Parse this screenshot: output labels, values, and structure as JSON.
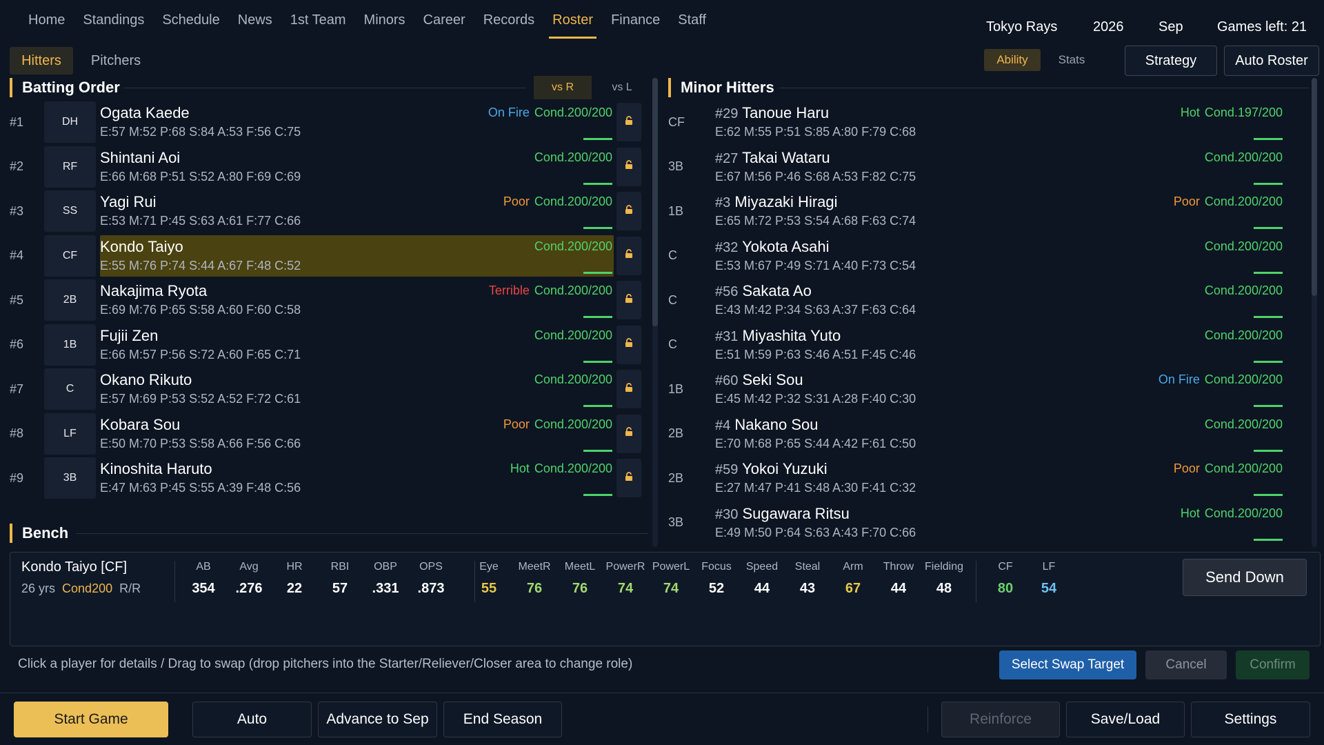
{
  "nav": [
    "Home",
    "Standings",
    "Schedule",
    "News",
    "1st Team",
    "Minors",
    "Career",
    "Records",
    "Roster",
    "Finance",
    "Staff"
  ],
  "nav_active": "Roster",
  "header": {
    "team": "Tokyo Rays",
    "year": "2026",
    "month": "Sep",
    "games_left": "Games left: 21"
  },
  "subtabs": {
    "hitters": "Hitters",
    "pitchers": "Pitchers",
    "ability": "Ability",
    "stats": "Stats",
    "strategy": "Strategy",
    "auto_roster": "Auto Roster"
  },
  "batting_order": {
    "title": "Batting Order",
    "vs_r": "vs R",
    "vs_l": "vs L",
    "rows": [
      {
        "num": "#1",
        "pos": "DH",
        "name": "Ogata Kaede",
        "stats": "E:57 M:52 P:68 S:84 A:53 F:56 C:75",
        "mood": "On Fire",
        "mood_class": "fire",
        "cond": "Cond.200/200",
        "selected": false
      },
      {
        "num": "#2",
        "pos": "RF",
        "name": "Shintani Aoi",
        "stats": "E:66 M:68 P:51 S:52 A:80 F:69 C:69",
        "mood": "",
        "mood_class": "",
        "cond": "Cond.200/200",
        "selected": false
      },
      {
        "num": "#3",
        "pos": "SS",
        "name": "Yagi Rui",
        "stats": "E:53 M:71 P:45 S:63 A:61 F:77 C:66",
        "mood": "Poor",
        "mood_class": "poor",
        "cond": "Cond.200/200",
        "selected": false
      },
      {
        "num": "#4",
        "pos": "CF",
        "name": "Kondo Taiyo",
        "stats": "E:55 M:76 P:74 S:44 A:67 F:48 C:52",
        "mood": "",
        "mood_class": "",
        "cond": "Cond.200/200",
        "selected": true
      },
      {
        "num": "#5",
        "pos": "2B",
        "name": "Nakajima Ryota",
        "stats": "E:69 M:76 P:65 S:58 A:60 F:60 C:58",
        "mood": "Terrible",
        "mood_class": "terrible",
        "cond": "Cond.200/200",
        "selected": false
      },
      {
        "num": "#6",
        "pos": "1B",
        "name": "Fujii Zen",
        "stats": "E:66 M:57 P:56 S:72 A:60 F:65 C:71",
        "mood": "",
        "mood_class": "",
        "cond": "Cond.200/200",
        "selected": false
      },
      {
        "num": "#7",
        "pos": "C",
        "name": "Okano Rikuto",
        "stats": "E:57 M:69 P:53 S:52 A:52 F:72 C:61",
        "mood": "",
        "mood_class": "",
        "cond": "Cond.200/200",
        "selected": false
      },
      {
        "num": "#8",
        "pos": "LF",
        "name": "Kobara Sou",
        "stats": "E:50 M:70 P:53 S:58 A:66 F:56 C:66",
        "mood": "Poor",
        "mood_class": "poor",
        "cond": "Cond.200/200",
        "selected": false
      },
      {
        "num": "#9",
        "pos": "3B",
        "name": "Kinoshita Haruto",
        "stats": "E:47 M:63 P:45 S:55 A:39 F:48 C:56",
        "mood": "Hot",
        "mood_class": "hot",
        "cond": "Cond.200/200",
        "selected": false
      }
    ]
  },
  "bench": {
    "title": "Bench"
  },
  "minor_hitters": {
    "title": "Minor Hitters",
    "rows": [
      {
        "pos": "CF",
        "jersey": "#29",
        "name": "Tanoue Haru",
        "stats": "E:62 M:55 P:51 S:85 A:80 F:79 C:68",
        "mood": "Hot",
        "mood_class": "hot",
        "cond": "Cond.197/200"
      },
      {
        "pos": "3B",
        "jersey": "#27",
        "name": "Takai Wataru",
        "stats": "E:67 M:56 P:46 S:68 A:53 F:82 C:75",
        "mood": "",
        "mood_class": "",
        "cond": "Cond.200/200"
      },
      {
        "pos": "1B",
        "jersey": "#3",
        "name": "Miyazaki Hiragi",
        "stats": "E:65 M:72 P:53 S:54 A:68 F:63 C:74",
        "mood": "Poor",
        "mood_class": "poor",
        "cond": "Cond.200/200"
      },
      {
        "pos": "C",
        "jersey": "#32",
        "name": "Yokota Asahi",
        "stats": "E:53 M:67 P:49 S:71 A:40 F:73 C:54",
        "mood": "",
        "mood_class": "",
        "cond": "Cond.200/200"
      },
      {
        "pos": "C",
        "jersey": "#56",
        "name": "Sakata Ao",
        "stats": "E:43 M:42 P:34 S:63 A:37 F:63 C:64",
        "mood": "",
        "mood_class": "",
        "cond": "Cond.200/200"
      },
      {
        "pos": "C",
        "jersey": "#31",
        "name": "Miyashita Yuto",
        "stats": "E:51 M:59 P:63 S:46 A:51 F:45 C:46",
        "mood": "",
        "mood_class": "",
        "cond": "Cond.200/200"
      },
      {
        "pos": "1B",
        "jersey": "#60",
        "name": "Seki Sou",
        "stats": "E:45 M:42 P:32 S:31 A:28 F:40 C:30",
        "mood": "On Fire",
        "mood_class": "fire",
        "cond": "Cond.200/200"
      },
      {
        "pos": "2B",
        "jersey": "#4",
        "name": "Nakano Sou",
        "stats": "E:70 M:68 P:65 S:44 A:42 F:61 C:50",
        "mood": "",
        "mood_class": "",
        "cond": "Cond.200/200"
      },
      {
        "pos": "2B",
        "jersey": "#59",
        "name": "Yokoi Yuzuki",
        "stats": "E:27 M:47 P:41 S:48 A:30 F:41 C:32",
        "mood": "Poor",
        "mood_class": "poor",
        "cond": "Cond.200/200"
      },
      {
        "pos": "3B",
        "jersey": "#30",
        "name": "Sugawara Ritsu",
        "stats": "E:49 M:50 P:64 S:63 A:43 F:70 C:66",
        "mood": "Hot",
        "mood_class": "hot",
        "cond": "Cond.200/200"
      }
    ]
  },
  "detail": {
    "name": "Kondo Taiyo [CF]",
    "age": "26 yrs",
    "cond": "Cond200",
    "hand": "R/R",
    "batting": [
      {
        "label": "AB",
        "value": "354"
      },
      {
        "label": "Avg",
        "value": ".276"
      },
      {
        "label": "HR",
        "value": "22"
      },
      {
        "label": "RBI",
        "value": "57"
      },
      {
        "label": "OBP",
        "value": ".331"
      },
      {
        "label": "OPS",
        "value": ".873"
      }
    ],
    "ratings": [
      {
        "label": "Eye",
        "value": "55",
        "color": "yellow"
      },
      {
        "label": "MeetR",
        "value": "76",
        "color": "green"
      },
      {
        "label": "MeetL",
        "value": "76",
        "color": "green"
      },
      {
        "label": "PowerR",
        "value": "74",
        "color": "green"
      },
      {
        "label": "PowerL",
        "value": "74",
        "color": "green"
      },
      {
        "label": "Focus",
        "value": "52",
        "color": "white"
      },
      {
        "label": "Speed",
        "value": "44",
        "color": "white"
      },
      {
        "label": "Steal",
        "value": "43",
        "color": "white"
      },
      {
        "label": "Arm",
        "value": "67",
        "color": "yellow"
      },
      {
        "label": "Throw",
        "value": "44",
        "color": "white"
      },
      {
        "label": "Fielding",
        "value": "48",
        "color": "white"
      }
    ],
    "positions": [
      {
        "label": "CF",
        "value": "80",
        "color": "brightgreen"
      },
      {
        "label": "LF",
        "value": "54",
        "color": "blue"
      }
    ],
    "send_down": "Send Down"
  },
  "hint": "Click a player for details / Drag to swap (drop pitchers into the Starter/Reliever/Closer area to change role)",
  "actions": {
    "select_swap": "Select Swap Target",
    "cancel": "Cancel",
    "confirm": "Confirm"
  },
  "bottom": {
    "start_game": "Start Game",
    "auto": "Auto",
    "advance": "Advance to Sep",
    "end_season": "End Season",
    "reinforce": "Reinforce",
    "save_load": "Save/Load",
    "settings": "Settings"
  },
  "colors": {
    "accent": "#f0b64b",
    "cond_green": "#4fd36a",
    "on_fire": "#4aa8e8",
    "poor": "#f0993b",
    "terrible": "#e84545",
    "selected_row": "#4a4210",
    "swap_button": "#1f5fa8"
  }
}
